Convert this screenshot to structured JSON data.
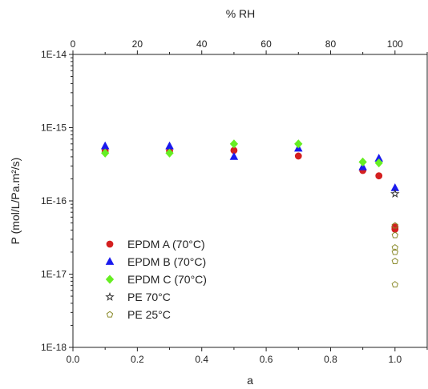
{
  "chart_data": {
    "type": "scatter",
    "title": "",
    "xlabel": "a",
    "ylabel": "P (mol/L/Pa.m²/s)",
    "top_xlabel": "% RH",
    "xlim": [
      0,
      1.1
    ],
    "ylim": [
      1e-18,
      1e-14
    ],
    "y_scale": "log",
    "grid": false,
    "legend_position": "lower-left",
    "x_ticks": [
      0.0,
      0.2,
      0.4,
      0.6,
      0.8,
      1.0
    ],
    "x_tick_labels": [
      "0.0",
      "0.2",
      "0.4",
      "0.6",
      "0.8",
      "1.0"
    ],
    "top_ticks": [
      0,
      20,
      40,
      60,
      80,
      100
    ],
    "top_tick_labels": [
      "0",
      "20",
      "40",
      "60",
      "80",
      "100"
    ],
    "y_ticks": [
      1e-18,
      1e-17,
      1e-16,
      1e-15,
      1e-14
    ],
    "y_tick_labels": [
      "1E-18",
      "1E-17",
      "1E-16",
      "1E-15",
      "1E-14"
    ],
    "series": [
      {
        "name": "EPDM A (70°C)",
        "marker": "circle",
        "color": "#d42020",
        "filled": true,
        "points": [
          [
            0.1,
            4.8e-16
          ],
          [
            0.3,
            4.8e-16
          ],
          [
            0.5,
            4.9e-16
          ],
          [
            0.7,
            4.1e-16
          ],
          [
            0.9,
            2.6e-16
          ],
          [
            0.95,
            2.2e-16
          ],
          [
            1.0,
            4.4e-17
          ],
          [
            1.0,
            4.1e-17
          ]
        ]
      },
      {
        "name": "EPDM B (70°C)",
        "marker": "triangle",
        "color": "#1a1aee",
        "filled": true,
        "points": [
          [
            0.1,
            5.6e-16
          ],
          [
            0.3,
            5.6e-16
          ],
          [
            0.5,
            4e-16
          ],
          [
            0.7,
            5.2e-16
          ],
          [
            0.9,
            2.9e-16
          ],
          [
            0.95,
            3.8e-16
          ],
          [
            1.0,
            1.5e-16
          ]
        ]
      },
      {
        "name": "EPDM C (70°C)",
        "marker": "diamond",
        "color": "#66ee22",
        "filled": true,
        "points": [
          [
            0.1,
            4.5e-16
          ],
          [
            0.3,
            4.5e-16
          ],
          [
            0.5,
            6e-16
          ],
          [
            0.7,
            6e-16
          ],
          [
            0.9,
            3.4e-16
          ],
          [
            0.95,
            3.3e-16
          ]
        ]
      },
      {
        "name": "PE 70°C",
        "marker": "star",
        "color": "#333333",
        "filled": false,
        "points": [
          [
            1.0,
            1.25e-16
          ]
        ]
      },
      {
        "name": "PE 25°C",
        "marker": "pentagon",
        "color": "#8a8a2a",
        "filled": false,
        "points": [
          [
            1.0,
            4.6e-17
          ],
          [
            1.0,
            3.4e-17
          ],
          [
            1.0,
            2.3e-17
          ],
          [
            1.0,
            2e-17
          ],
          [
            1.0,
            1.5e-17
          ],
          [
            1.0,
            7.2e-18
          ]
        ]
      }
    ]
  }
}
